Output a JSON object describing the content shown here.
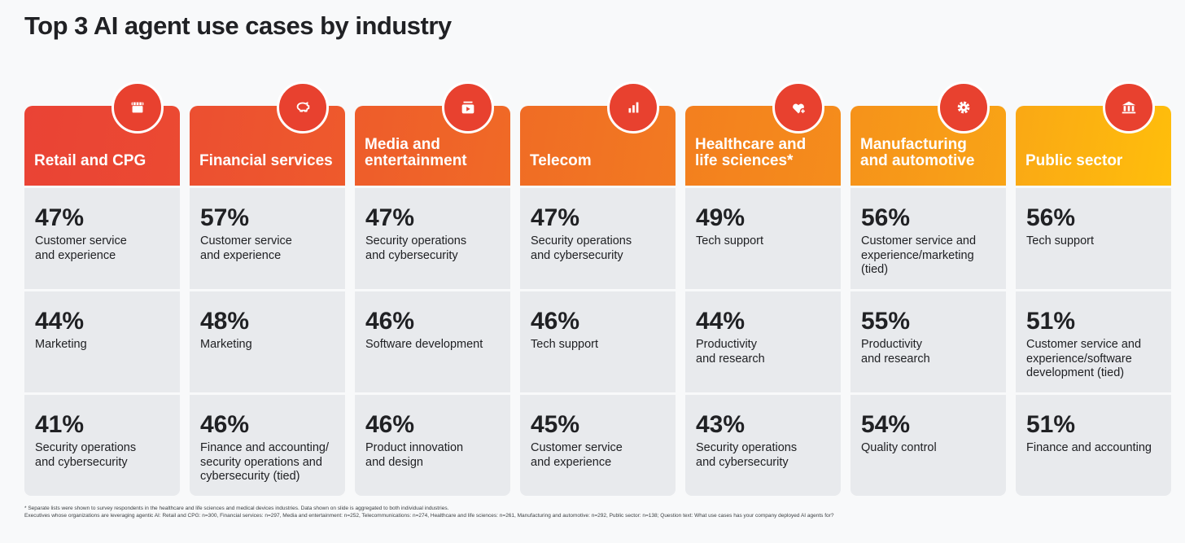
{
  "title": "Top 3 AI agent use cases by industry",
  "columns": [
    {
      "name": "Retail and CPG",
      "icon": "storefront-icon",
      "color_from": "#ea4335",
      "color_to": "#eb4a32",
      "items": [
        {
          "pct": "47%",
          "label": "Customer service\nand experience"
        },
        {
          "pct": "44%",
          "label": "Marketing"
        },
        {
          "pct": "41%",
          "label": "Security operations\nand cybersecurity"
        }
      ]
    },
    {
      "name": "Financial services",
      "icon": "piggy-bank-icon",
      "color_from": "#ec4f31",
      "color_to": "#ee5a2c",
      "items": [
        {
          "pct": "57%",
          "label": "Customer service\nand experience"
        },
        {
          "pct": "48%",
          "label": "Marketing"
        },
        {
          "pct": "46%",
          "label": "Finance and accounting/\nsecurity operations and\ncybersecurity (tied)"
        }
      ]
    },
    {
      "name": "Media and\nentertainment",
      "icon": "video-library-icon",
      "color_from": "#ee5c2b",
      "color_to": "#f06a26",
      "items": [
        {
          "pct": "47%",
          "label": "Security operations\nand cybersecurity"
        },
        {
          "pct": "46%",
          "label": "Software development"
        },
        {
          "pct": "46%",
          "label": "Product innovation\nand design"
        }
      ]
    },
    {
      "name": "Telecom",
      "icon": "bar-chart-icon",
      "color_from": "#f06c25",
      "color_to": "#f27a21",
      "items": [
        {
          "pct": "47%",
          "label": "Security operations\nand cybersecurity"
        },
        {
          "pct": "46%",
          "label": "Tech support"
        },
        {
          "pct": "45%",
          "label": "Customer service\nand experience"
        }
      ]
    },
    {
      "name": "Healthcare and\nlife sciences*",
      "icon": "heart-plus-icon",
      "color_from": "#f37f1f",
      "color_to": "#f58d1b",
      "items": [
        {
          "pct": "49%",
          "label": "Tech support"
        },
        {
          "pct": "44%",
          "label": "Productivity\nand research"
        },
        {
          "pct": "43%",
          "label": "Security operations\nand cybersecurity"
        }
      ]
    },
    {
      "name": "Manufacturing\nand automotive",
      "icon": "gear-icon",
      "color_from": "#f6921a",
      "color_to": "#f9a416",
      "items": [
        {
          "pct": "56%",
          "label": "Customer service and\nexperience/marketing\n(tied)"
        },
        {
          "pct": "55%",
          "label": "Productivity\nand research"
        },
        {
          "pct": "54%",
          "label": "Quality control"
        }
      ]
    },
    {
      "name": "Public sector",
      "icon": "bank-icon",
      "color_from": "#faa815",
      "color_to": "#ffbe0b",
      "items": [
        {
          "pct": "56%",
          "label": "Tech support"
        },
        {
          "pct": "51%",
          "label": "Customer service and\nexperience/software\ndevelopment (tied)"
        },
        {
          "pct": "51%",
          "label": "Finance and accounting"
        }
      ]
    }
  ],
  "footnotes": [
    "* Separate lists were shown to survey respondents in the healthcare and life sciences and medical devices industries. Data shown on slide is aggregated to both individual industries.",
    "Executives whose organizations are leveraging agentic AI: Retail and CPG: n=300, Financial services: n=297, Media and entertainment: n=252, Telecommunications: n=274, Healthcare and life sciences: n=261, Manufacturing and automotive: n=292, Public sector: n=138; Question text: What use cases has your company deployed AI agents for?"
  ]
}
